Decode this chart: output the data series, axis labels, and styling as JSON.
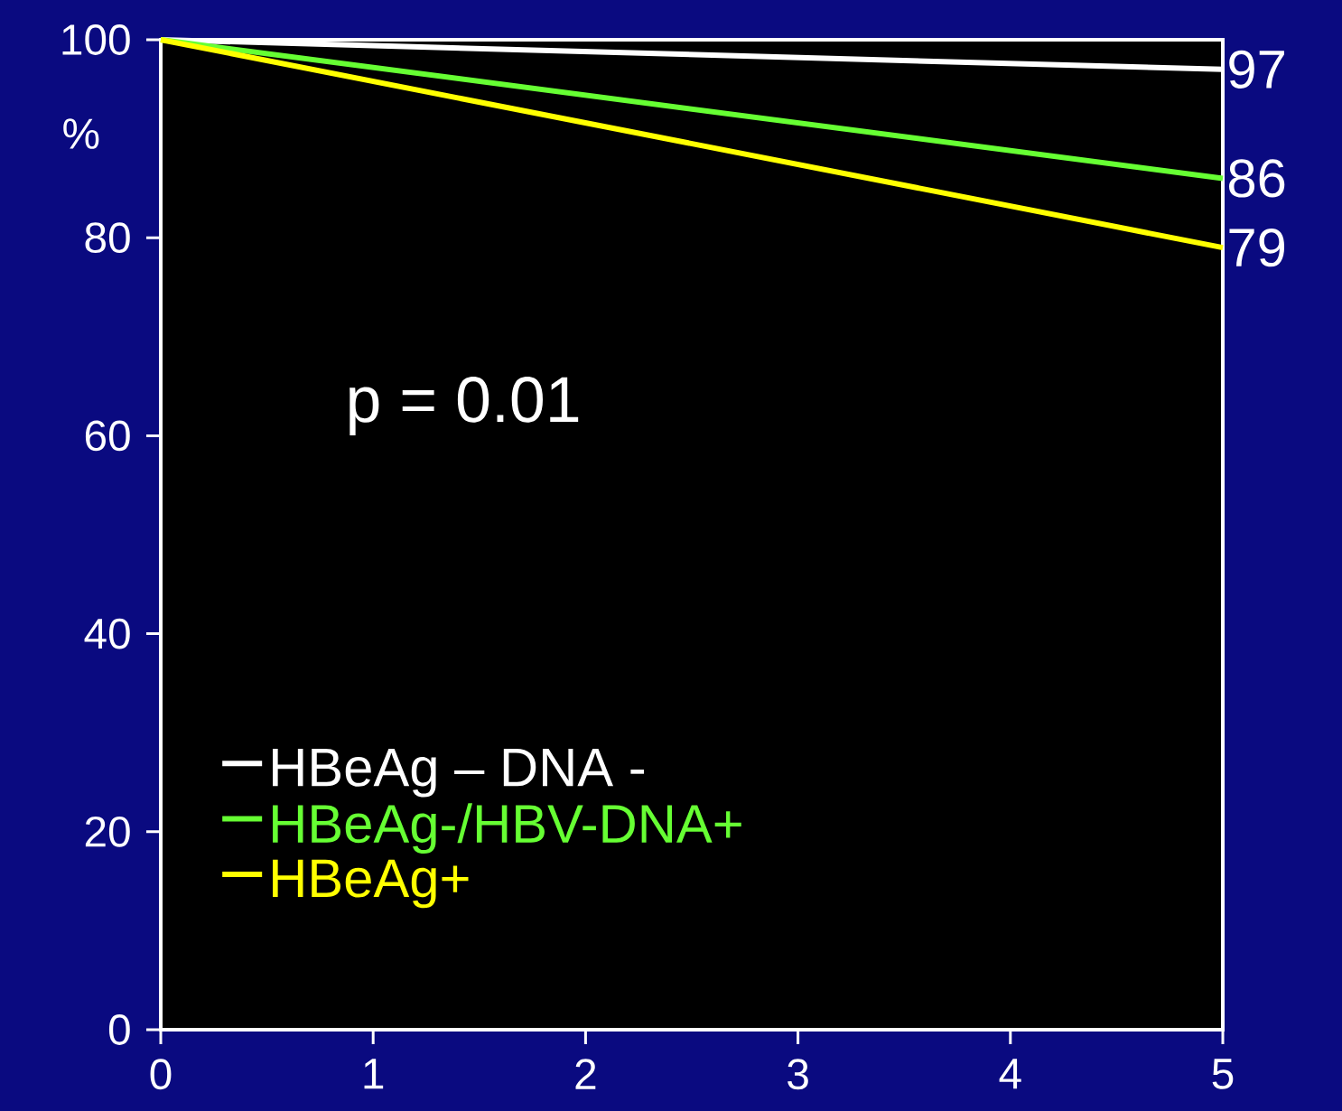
{
  "chart_data": {
    "type": "line",
    "ylabel": "%",
    "x": [
      0,
      5
    ],
    "xlim": [
      0,
      5
    ],
    "xticks": [
      0,
      1,
      2,
      3,
      4,
      5
    ],
    "ylim": [
      0,
      100
    ],
    "yticks": [
      0,
      20,
      40,
      60,
      80,
      100
    ],
    "grid": false,
    "legend": "bottom left",
    "marker": "none",
    "line_style": "solid",
    "annotations": [
      "p = 0.01"
    ],
    "series": [
      {
        "name": "HBeAg – DNA -",
        "color": "#ffffff",
        "values": [
          100,
          97
        ],
        "value_labels": [
          null,
          "97"
        ]
      },
      {
        "name": "HBeAg-/HBV-DNA+",
        "color": "#66ff33",
        "values": [
          100,
          86
        ],
        "value_labels": [
          null,
          "86"
        ]
      },
      {
        "name": "HBeAg+",
        "color": "#ffff00",
        "values": [
          100,
          79
        ],
        "value_labels": [
          null,
          "79"
        ]
      }
    ]
  }
}
